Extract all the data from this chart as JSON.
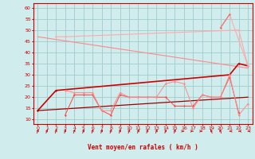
{
  "xlabel": "Vent moyen/en rafales ( km/h )",
  "bg_color": "#d0ecec",
  "grid_color": "#a0cccc",
  "xlim": [
    -0.5,
    23.5
  ],
  "ylim": [
    8,
    62
  ],
  "yticks": [
    10,
    15,
    20,
    25,
    30,
    35,
    40,
    45,
    50,
    55,
    60
  ],
  "xticks": [
    0,
    1,
    2,
    3,
    4,
    5,
    6,
    7,
    8,
    9,
    10,
    11,
    12,
    13,
    14,
    15,
    16,
    17,
    18,
    19,
    20,
    21,
    22,
    23
  ],
  "lines": [
    {
      "x": [
        0,
        23
      ],
      "y": [
        47,
        33
      ],
      "color": "#ff8888",
      "lw": 0.8,
      "marker": null
    },
    {
      "x": [
        2,
        3,
        22,
        23
      ],
      "y": [
        47,
        47,
        50,
        34
      ],
      "color": "#ffaaaa",
      "lw": 0.8,
      "marker": "D"
    },
    {
      "x": [
        0,
        2,
        21,
        22,
        23
      ],
      "y": [
        14,
        23,
        30,
        35,
        34
      ],
      "color": "#cc0000",
      "lw": 1.2,
      "marker": "D"
    },
    {
      "x": [
        0,
        23
      ],
      "y": [
        14,
        20
      ],
      "color": "#990000",
      "lw": 0.9,
      "marker": null
    },
    {
      "x": [
        3,
        4,
        5,
        6,
        7,
        8,
        9,
        10,
        11,
        12,
        13,
        14,
        15,
        16,
        17,
        18,
        19,
        20,
        21,
        22
      ],
      "y": [
        12,
        21,
        21,
        21,
        14,
        12,
        21,
        20,
        20,
        20,
        20,
        20,
        16,
        16,
        16,
        21,
        20,
        20,
        29,
        13
      ],
      "color": "#ff4444",
      "lw": 0.7,
      "marker": "D"
    },
    {
      "x": [
        3,
        4,
        5,
        6,
        7,
        8,
        9,
        10,
        11,
        12,
        13,
        14,
        15,
        16,
        17,
        18,
        19,
        20,
        21,
        22,
        23
      ],
      "y": [
        23,
        22,
        22,
        22,
        14,
        14,
        22,
        20,
        20,
        20,
        20,
        26,
        27,
        26,
        15,
        21,
        20,
        20,
        30,
        12,
        17
      ],
      "color": "#ff8888",
      "lw": 0.7,
      "marker": "D"
    },
    {
      "x": [
        20,
        21,
        23
      ],
      "y": [
        51,
        57,
        34
      ],
      "color": "#ffaaaa",
      "lw": 0.8,
      "marker": "D"
    },
    {
      "x": [
        20,
        21
      ],
      "y": [
        51,
        57
      ],
      "color": "#ff6666",
      "lw": 0.8,
      "marker": "D"
    }
  ],
  "arrows": {
    "x": [
      0,
      1,
      2,
      3,
      4,
      5,
      6,
      7,
      8,
      9,
      10,
      11,
      12,
      13,
      14,
      15,
      16,
      17,
      18,
      19,
      20,
      21,
      22,
      23
    ],
    "angles": [
      45,
      45,
      45,
      45,
      45,
      45,
      45,
      45,
      45,
      45,
      45,
      45,
      45,
      45,
      45,
      45,
      90,
      90,
      90,
      315,
      315,
      270,
      270,
      270
    ]
  }
}
